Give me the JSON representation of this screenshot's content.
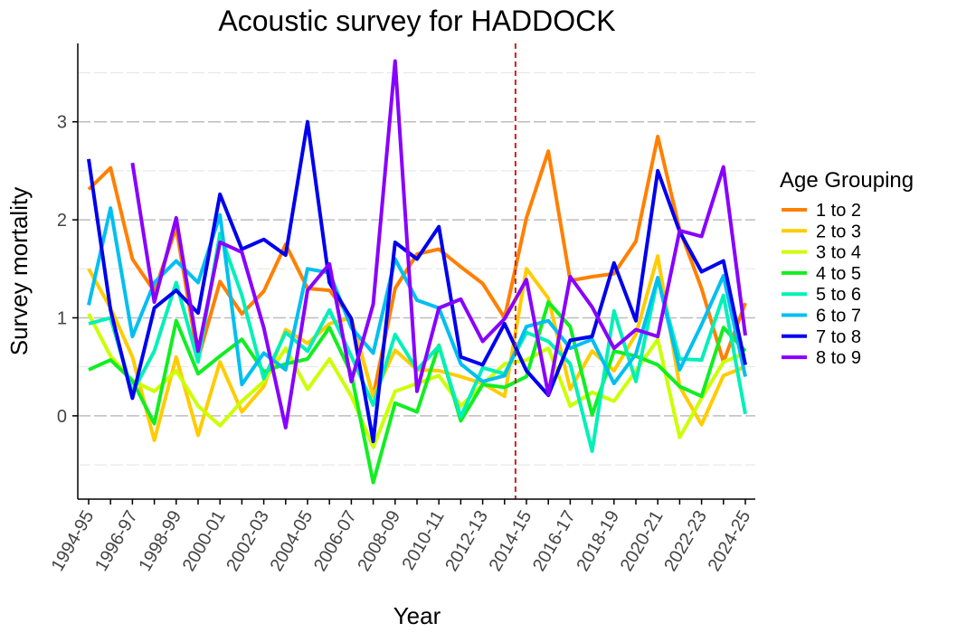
{
  "chart_data": {
    "type": "line",
    "title": "Acoustic survey for HADDOCK",
    "xlabel": "Year",
    "ylabel": "Survey mortality",
    "legend_title": "Age Grouping",
    "legend_position": "right",
    "grid": "horizontal",
    "ylim": [
      -0.85,
      3.8
    ],
    "yticks": [
      0,
      1,
      2,
      3
    ],
    "vline_between": [
      "2013-14",
      "2014-15"
    ],
    "vline_color": "#CC2222",
    "categories": [
      "1994-95",
      "1995-96",
      "1996-97",
      "1997-98",
      "1998-99",
      "1999-00",
      "2000-01",
      "2001-02",
      "2002-03",
      "2003-04",
      "2004-05",
      "2005-06",
      "2006-07",
      "2007-08",
      "2008-09",
      "2009-10",
      "2010-11",
      "2011-12",
      "2012-13",
      "2013-14",
      "2014-15",
      "2015-16",
      "2016-17",
      "2017-18",
      "2018-19",
      "2019-20",
      "2020-21",
      "2021-22",
      "2022-23",
      "2023-24",
      "2024-25"
    ],
    "xtick_labels": [
      "1994-95",
      "1996-97",
      "1998-99",
      "2000-01",
      "2002-03",
      "2004-05",
      "2006-07",
      "2008-09",
      "2010-11",
      "2012-13",
      "2014-15",
      "2016-17",
      "2018-19",
      "2020-21",
      "2022-23",
      "2024-25"
    ],
    "series": [
      {
        "name": "1 to 2",
        "color": "#FF8000",
        "values": [
          2.31,
          2.53,
          1.6,
          1.27,
          1.92,
          0.58,
          1.37,
          1.04,
          1.27,
          1.75,
          1.3,
          1.28,
          1.0,
          0.2,
          1.3,
          1.65,
          1.7,
          1.52,
          1.35,
          1.0,
          2.02,
          2.7,
          1.38,
          1.42,
          1.45,
          1.78,
          2.85,
          1.9,
          1.3,
          0.55,
          1.15
        ]
      },
      {
        "name": "2 to 3",
        "color": "#FFCC00",
        "values": [
          1.5,
          1.1,
          0.6,
          -0.25,
          0.6,
          -0.2,
          0.55,
          0.04,
          0.3,
          0.88,
          0.74,
          0.94,
          1.0,
          0.2,
          0.67,
          0.47,
          0.46,
          0.4,
          0.33,
          0.2,
          1.5,
          1.2,
          0.27,
          0.66,
          0.46,
          0.83,
          1.63,
          0.3,
          -0.09,
          0.41,
          0.5
        ]
      },
      {
        "name": "3 to 4",
        "color": "#CCFF00",
        "values": [
          1.04,
          0.61,
          0.36,
          0.25,
          0.46,
          0.1,
          -0.1,
          0.15,
          0.35,
          0.69,
          0.27,
          0.58,
          0.2,
          -0.32,
          0.25,
          0.33,
          0.41,
          0.1,
          0.32,
          0.53,
          0.57,
          0.69,
          0.1,
          0.24,
          0.15,
          0.46,
          0.78,
          -0.22,
          0.18,
          0.55,
          0.64
        ]
      },
      {
        "name": "4 to 5",
        "color": "#11EE22",
        "values": [
          0.47,
          0.57,
          0.36,
          -0.08,
          0.97,
          0.43,
          0.61,
          0.78,
          0.45,
          0.53,
          0.58,
          0.9,
          0.43,
          -0.68,
          0.13,
          0.04,
          0.72,
          -0.05,
          0.32,
          0.29,
          0.4,
          1.16,
          0.91,
          0.01,
          0.66,
          0.61,
          0.52,
          0.3,
          0.2,
          0.9,
          0.66
        ]
      },
      {
        "name": "5 to 6",
        "color": "#00F0B8",
        "values": [
          0.94,
          1.0,
          0.24,
          0.66,
          1.36,
          0.55,
          1.86,
          1.23,
          0.38,
          0.85,
          0.66,
          1.08,
          0.61,
          0.11,
          0.83,
          0.47,
          0.71,
          -0.01,
          0.49,
          0.43,
          0.85,
          0.76,
          0.53,
          -0.36,
          1.07,
          0.35,
          1.4,
          0.58,
          0.57,
          1.23,
          0.02
        ]
      },
      {
        "name": "6 to 7",
        "color": "#00BFF0",
        "values": [
          1.13,
          2.12,
          0.81,
          1.36,
          1.58,
          1.36,
          2.05,
          0.32,
          0.64,
          0.47,
          1.5,
          1.46,
          0.9,
          0.64,
          1.6,
          1.18,
          1.1,
          0.53,
          0.35,
          0.41,
          0.91,
          0.97,
          0.69,
          0.78,
          0.33,
          0.63,
          1.41,
          0.47,
          0.93,
          1.43,
          0.4
        ]
      },
      {
        "name": "7 to 8",
        "color": "#0000EE",
        "values": [
          2.62,
          1.08,
          0.18,
          1.1,
          1.28,
          1.05,
          2.26,
          1.7,
          1.8,
          1.64,
          3.0,
          1.36,
          0.99,
          -0.26,
          1.77,
          1.6,
          1.93,
          0.6,
          0.52,
          0.94,
          0.46,
          0.21,
          0.77,
          0.81,
          1.56,
          0.97,
          2.5,
          1.88,
          1.47,
          1.58,
          0.52
        ]
      },
      {
        "name": "8 to 9",
        "color": "#8800FF",
        "values": [
          null,
          null,
          2.58,
          1.16,
          2.02,
          0.66,
          1.77,
          1.67,
          0.9,
          -0.12,
          1.28,
          1.55,
          0.35,
          1.14,
          3.62,
          0.25,
          1.1,
          1.19,
          0.76,
          0.99,
          1.39,
          0.22,
          1.42,
          1.11,
          0.69,
          0.88,
          0.81,
          1.89,
          1.83,
          2.54,
          0.82
        ]
      }
    ]
  }
}
